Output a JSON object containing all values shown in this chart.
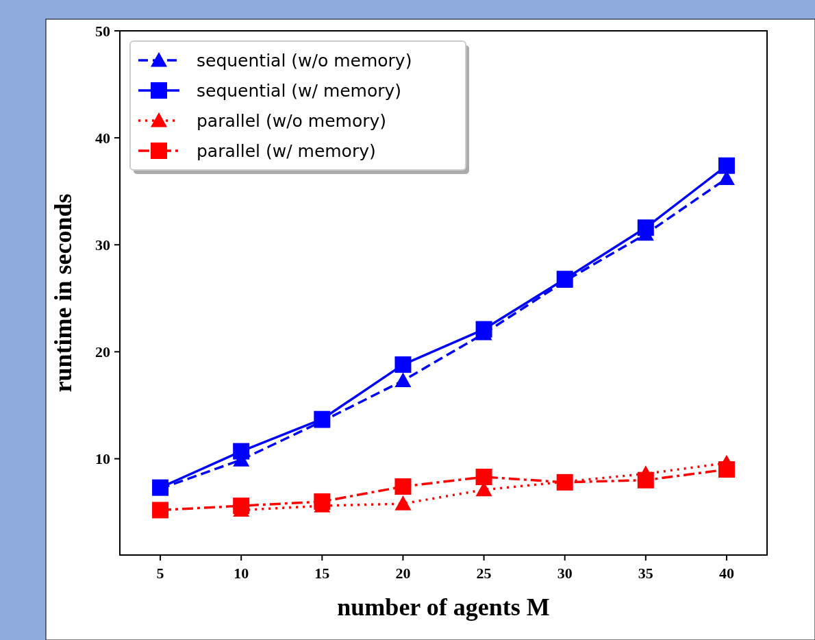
{
  "chart_data": {
    "type": "line",
    "xlabel": "number of agents M",
    "ylabel": "runtime in seconds",
    "x": [
      5,
      10,
      15,
      20,
      25,
      30,
      35,
      40
    ],
    "xlim": [
      2.5,
      42.5
    ],
    "xticks": [
      5,
      10,
      15,
      20,
      25,
      30,
      35,
      40
    ],
    "ylim": [
      1,
      50
    ],
    "yticks": [
      10,
      20,
      30,
      40,
      50
    ],
    "grid": false,
    "legend": "top left",
    "series": [
      {
        "name": "sequential (w/o memory)",
        "color": "#0000ff",
        "marker": "triangle",
        "line_style": "dashed",
        "values": [
          7.2,
          9.9,
          13.5,
          17.3,
          21.7,
          26.6,
          31.0,
          36.2
        ]
      },
      {
        "name": "sequential (w/ memory)",
        "color": "#0000ff",
        "marker": "square",
        "line_style": "solid",
        "values": [
          7.3,
          10.7,
          13.7,
          18.8,
          22.1,
          26.8,
          31.6,
          37.4
        ]
      },
      {
        "name": "parallel (w/o memory)",
        "color": "#ff0000",
        "marker": "triangle",
        "line_style": "dotted",
        "values": [
          null,
          5.2,
          5.6,
          5.8,
          7.1,
          null,
          8.6,
          9.6
        ]
      },
      {
        "name": "parallel (w/ memory)",
        "color": "#ff0000",
        "marker": "square",
        "line_style": "dashdot",
        "values": [
          5.2,
          5.6,
          6.0,
          7.4,
          8.3,
          7.8,
          8.0,
          9.0
        ]
      }
    ]
  }
}
